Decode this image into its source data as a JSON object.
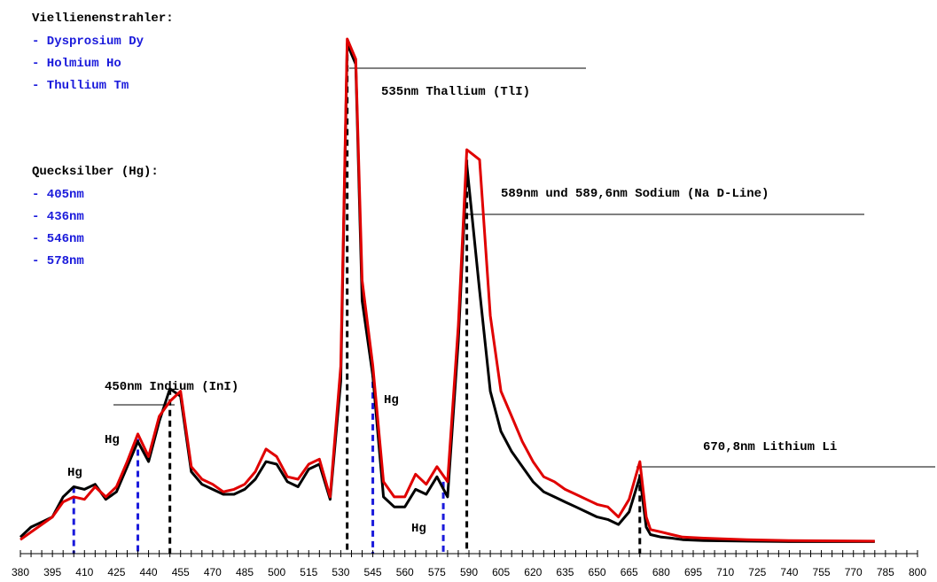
{
  "chart_data": {
    "type": "line",
    "title": "",
    "xlabel": "",
    "ylabel": "",
    "xlim": [
      380,
      800
    ],
    "x_tick_step": 5,
    "x_label_step": 15,
    "grid": false,
    "series": [
      {
        "color": "#000000",
        "points": [
          [
            380,
            0.01
          ],
          [
            385,
            0.03
          ],
          [
            390,
            0.04
          ],
          [
            395,
            0.05
          ],
          [
            400,
            0.09
          ],
          [
            405,
            0.11
          ],
          [
            410,
            0.105
          ],
          [
            415,
            0.115
          ],
          [
            420,
            0.085
          ],
          [
            425,
            0.1
          ],
          [
            430,
            0.15
          ],
          [
            435,
            0.2
          ],
          [
            440,
            0.16
          ],
          [
            445,
            0.24
          ],
          [
            450,
            0.305
          ],
          [
            455,
            0.29
          ],
          [
            460,
            0.14
          ],
          [
            465,
            0.115
          ],
          [
            470,
            0.105
          ],
          [
            475,
            0.095
          ],
          [
            480,
            0.095
          ],
          [
            485,
            0.105
          ],
          [
            490,
            0.125
          ],
          [
            495,
            0.16
          ],
          [
            500,
            0.155
          ],
          [
            505,
            0.12
          ],
          [
            510,
            0.11
          ],
          [
            515,
            0.145
          ],
          [
            520,
            0.155
          ],
          [
            525,
            0.085
          ],
          [
            530,
            0.32
          ],
          [
            533,
            0.99
          ],
          [
            537,
            0.95
          ],
          [
            540,
            0.48
          ],
          [
            545,
            0.33
          ],
          [
            550,
            0.09
          ],
          [
            555,
            0.07
          ],
          [
            560,
            0.07
          ],
          [
            565,
            0.105
          ],
          [
            570,
            0.095
          ],
          [
            575,
            0.13
          ],
          [
            580,
            0.09
          ],
          [
            585,
            0.4
          ],
          [
            589,
            0.75
          ],
          [
            595,
            0.5
          ],
          [
            600,
            0.3
          ],
          [
            605,
            0.22
          ],
          [
            610,
            0.18
          ],
          [
            615,
            0.15
          ],
          [
            620,
            0.12
          ],
          [
            625,
            0.1
          ],
          [
            630,
            0.09
          ],
          [
            635,
            0.08
          ],
          [
            640,
            0.07
          ],
          [
            645,
            0.06
          ],
          [
            650,
            0.05
          ],
          [
            655,
            0.045
          ],
          [
            660,
            0.035
          ],
          [
            665,
            0.06
          ],
          [
            670,
            0.13
          ],
          [
            673,
            0.03
          ],
          [
            675,
            0.015
          ],
          [
            680,
            0.01
          ],
          [
            685,
            0.008
          ],
          [
            690,
            0.005
          ],
          [
            700,
            0.003
          ],
          [
            720,
            0.002
          ],
          [
            740,
            0.001
          ],
          [
            780,
            0.001
          ]
        ]
      },
      {
        "color": "#e00000",
        "points": [
          [
            380,
            0.005
          ],
          [
            385,
            0.02
          ],
          [
            390,
            0.035
          ],
          [
            395,
            0.05
          ],
          [
            400,
            0.08
          ],
          [
            405,
            0.09
          ],
          [
            410,
            0.085
          ],
          [
            415,
            0.11
          ],
          [
            420,
            0.09
          ],
          [
            425,
            0.11
          ],
          [
            430,
            0.16
          ],
          [
            435,
            0.215
          ],
          [
            440,
            0.17
          ],
          [
            445,
            0.25
          ],
          [
            450,
            0.28
          ],
          [
            455,
            0.3
          ],
          [
            460,
            0.15
          ],
          [
            465,
            0.125
          ],
          [
            470,
            0.115
          ],
          [
            475,
            0.1
          ],
          [
            480,
            0.105
          ],
          [
            485,
            0.115
          ],
          [
            490,
            0.14
          ],
          [
            495,
            0.185
          ],
          [
            500,
            0.17
          ],
          [
            505,
            0.13
          ],
          [
            510,
            0.125
          ],
          [
            515,
            0.155
          ],
          [
            520,
            0.165
          ],
          [
            525,
            0.09
          ],
          [
            530,
            0.35
          ],
          [
            533,
            1.0
          ],
          [
            537,
            0.96
          ],
          [
            540,
            0.52
          ],
          [
            545,
            0.35
          ],
          [
            550,
            0.12
          ],
          [
            555,
            0.09
          ],
          [
            560,
            0.09
          ],
          [
            565,
            0.135
          ],
          [
            570,
            0.115
          ],
          [
            575,
            0.15
          ],
          [
            580,
            0.12
          ],
          [
            585,
            0.43
          ],
          [
            589,
            0.78
          ],
          [
            595,
            0.76
          ],
          [
            600,
            0.45
          ],
          [
            605,
            0.3
          ],
          [
            610,
            0.25
          ],
          [
            615,
            0.2
          ],
          [
            620,
            0.16
          ],
          [
            625,
            0.13
          ],
          [
            630,
            0.12
          ],
          [
            635,
            0.105
          ],
          [
            640,
            0.095
          ],
          [
            645,
            0.085
          ],
          [
            650,
            0.075
          ],
          [
            655,
            0.07
          ],
          [
            660,
            0.05
          ],
          [
            665,
            0.085
          ],
          [
            670,
            0.16
          ],
          [
            673,
            0.05
          ],
          [
            675,
            0.025
          ],
          [
            680,
            0.02
          ],
          [
            685,
            0.015
          ],
          [
            690,
            0.01
          ],
          [
            700,
            0.008
          ],
          [
            720,
            0.005
          ],
          [
            740,
            0.003
          ],
          [
            780,
            0.002
          ]
        ]
      }
    ],
    "markers": [
      {
        "x": 405,
        "y": 0.11,
        "color": "#1a1adb"
      },
      {
        "x": 435,
        "y": 0.205,
        "color": "#1a1adb"
      },
      {
        "x": 450,
        "y": 0.305,
        "color": "#000000"
      },
      {
        "x": 533,
        "y": 0.99,
        "color": "#000000"
      },
      {
        "x": 545,
        "y": 0.34,
        "color": "#1a1adb"
      },
      {
        "x": 578,
        "y": 0.12,
        "color": "#1a1adb"
      },
      {
        "x": 589,
        "y": 0.76,
        "color": "#000000"
      },
      {
        "x": 670,
        "y": 0.135,
        "color": "#000000"
      }
    ],
    "annotations": [
      {
        "text": "535nm Thallium (TlI)"
      },
      {
        "text": "589nm und 589,6nm Sodium (Na D-Line)"
      },
      {
        "text": "450nm Indium (InI)"
      },
      {
        "text": "670,8nm Lithium Li"
      },
      {
        "text": "Hg"
      },
      {
        "text": "Hg"
      },
      {
        "text": "Hg"
      },
      {
        "text": "Hg"
      }
    ],
    "legend_blocks": [
      {
        "heading": "Viellienenstrahler:",
        "items": [
          "- Dysprosium Dy",
          "- Holmium Ho",
          "- Thullium Tm"
        ]
      },
      {
        "heading": "Quecksilber (Hg):",
        "items": [
          "- 405nm",
          "- 436nm",
          "- 546nm",
          "- 578nm"
        ]
      }
    ]
  }
}
